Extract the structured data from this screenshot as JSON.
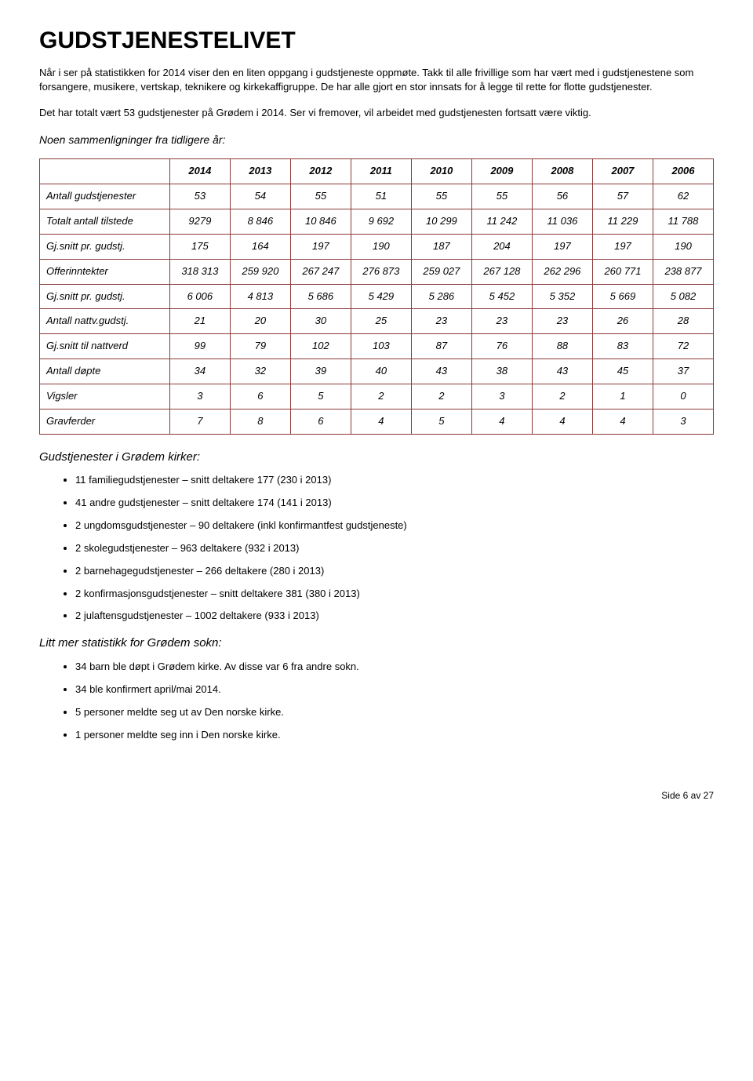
{
  "title": "GUDSTJENESTELIVET",
  "intro": {
    "p1": "Når i ser på statistikken for 2014 viser den en liten oppgang i gudstjeneste oppmøte. Takk til alle frivillige som har vært med i gudstjenestene som forsangere, musikere, vertskap, teknikere og kirkekaffigruppe. De har alle gjort en stor innsats for å legge til rette for flotte gudstjenester.",
    "p2": "Det har totalt vært 53 gudstjenester på Grødem i 2014. Ser vi fremover, vil arbeidet med gudstjenesten fortsatt være viktig.",
    "subhead": "Noen sammenligninger fra tidligere år:"
  },
  "table": {
    "years": [
      "2014",
      "2013",
      "2012",
      "2011",
      "2010",
      "2009",
      "2008",
      "2007",
      "2006"
    ],
    "rows": [
      {
        "label": "Antall gudstjenester",
        "values": [
          "53",
          "54",
          "55",
          "51",
          "55",
          "55",
          "56",
          "57",
          "62"
        ]
      },
      {
        "label": "Totalt antall tilstede",
        "values": [
          "9279",
          "8 846",
          "10 846",
          "9 692",
          "10 299",
          "11 242",
          "11 036",
          "11 229",
          "11 788"
        ]
      },
      {
        "label": "Gj.snitt pr. gudstj.",
        "values": [
          "175",
          "164",
          "197",
          "190",
          "187",
          "204",
          "197",
          "197",
          "190"
        ]
      },
      {
        "label": "Offerinntekter",
        "values": [
          "318 313",
          "259 920",
          "267 247",
          "276 873",
          "259 027",
          "267 128",
          "262 296",
          "260 771",
          "238 877"
        ]
      },
      {
        "label": "Gj.snitt pr. gudstj.",
        "values": [
          "6 006",
          "4 813",
          "5 686",
          "5 429",
          "5 286",
          "5 452",
          "5 352",
          "5 669",
          "5 082"
        ]
      },
      {
        "label": "Antall nattv.gudstj.",
        "values": [
          "21",
          "20",
          "30",
          "25",
          "23",
          "23",
          "23",
          "26",
          "28"
        ]
      },
      {
        "label": "Gj.snitt til nattverd",
        "values": [
          "99",
          "79",
          "102",
          "103",
          "87",
          "76",
          "88",
          "83",
          "72"
        ]
      },
      {
        "label": "Antall døpte",
        "values": [
          "34",
          "32",
          "39",
          "40",
          "43",
          "38",
          "43",
          "45",
          "37"
        ]
      },
      {
        "label": "Vigsler",
        "values": [
          "3",
          "6",
          "5",
          "2",
          "2",
          "3",
          "2",
          "1",
          "0"
        ]
      },
      {
        "label": "Gravferder",
        "values": [
          "7",
          "8",
          "6",
          "4",
          "5",
          "4",
          "4",
          "4",
          "3"
        ]
      }
    ],
    "border_color": "#8b3a3a",
    "font_style": "italic"
  },
  "sections": [
    {
      "title": "Gudstjenester i Grødem kirker:",
      "items": [
        "11 familiegudstjenester – snitt deltakere 177 (230 i 2013)",
        "41 andre gudstjenester – snitt deltakere 174 (141 i 2013)",
        "2 ungdomsgudstjenester – 90 deltakere (inkl konfirmantfest gudstjeneste)",
        "2 skolegudstjenester – 963 deltakere (932 i 2013)",
        "2 barnehagegudstjenester – 266 deltakere (280 i 2013)",
        "2 konfirmasjonsgudstjenester – snitt deltakere 381 (380 i 2013)",
        "2 julaftensgudstjenester – 1002 deltakere (933 i 2013)"
      ]
    },
    {
      "title": "Litt mer statistikk for Grødem sokn:",
      "items": [
        "34 barn ble døpt i Grødem kirke. Av disse var 6 fra andre sokn.",
        "34 ble konfirmert april/mai 2014.",
        "5 personer meldte seg ut av Den norske kirke.",
        "1 personer meldte seg inn i Den norske kirke."
      ]
    }
  ],
  "footer": "Side 6 av 27"
}
